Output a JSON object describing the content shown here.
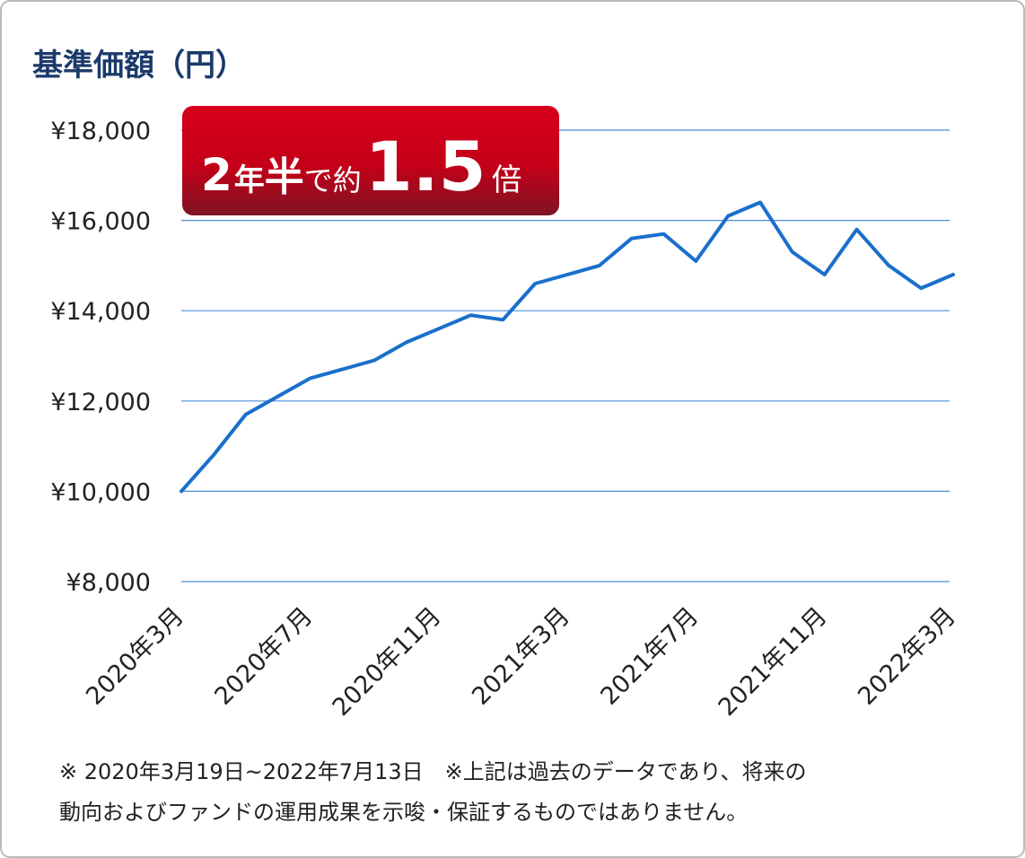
{
  "chart_data": {
    "type": "line",
    "title": "基準価額（円）",
    "annotation": [
      "2",
      "年",
      "半",
      "で約",
      "1.5",
      "倍"
    ],
    "categories": [
      "2020年3月",
      null,
      null,
      null,
      "2020年7月",
      null,
      null,
      null,
      "2020年11月",
      null,
      null,
      null,
      "2021年3月",
      null,
      null,
      null,
      "2021年7月",
      null,
      null,
      null,
      "2021年11月",
      null,
      null,
      null,
      "2022年3月"
    ],
    "series": [
      {
        "name": "基準価額",
        "color": "#1a6fcc",
        "values": [
          10000,
          10800,
          11700,
          12100,
          12500,
          12700,
          12900,
          13300,
          13600,
          13900,
          13800,
          14600,
          14800,
          15000,
          15600,
          15700,
          15100,
          16100,
          16400,
          15300,
          14800,
          15800,
          15000,
          14500,
          14800
        ]
      }
    ],
    "ylim": [
      8000,
      18000
    ],
    "yticks": [
      {
        "value": 8000,
        "label": "¥8,000"
      },
      {
        "value": 10000,
        "label": "¥10,000"
      },
      {
        "value": 12000,
        "label": "¥12,000"
      },
      {
        "value": 14000,
        "label": "¥14,000"
      },
      {
        "value": 16000,
        "label": "¥16,000"
      },
      {
        "value": 18000,
        "label": "¥18,000"
      }
    ],
    "grid": true,
    "grid_color": "#4a8ed8",
    "notes": [
      "※ 2020年3月19日~2022年7月13日　※上記は過去のデータであり、将来の",
      "動向およびファンドの運用成果を示唆・保証するものではありません。"
    ]
  }
}
